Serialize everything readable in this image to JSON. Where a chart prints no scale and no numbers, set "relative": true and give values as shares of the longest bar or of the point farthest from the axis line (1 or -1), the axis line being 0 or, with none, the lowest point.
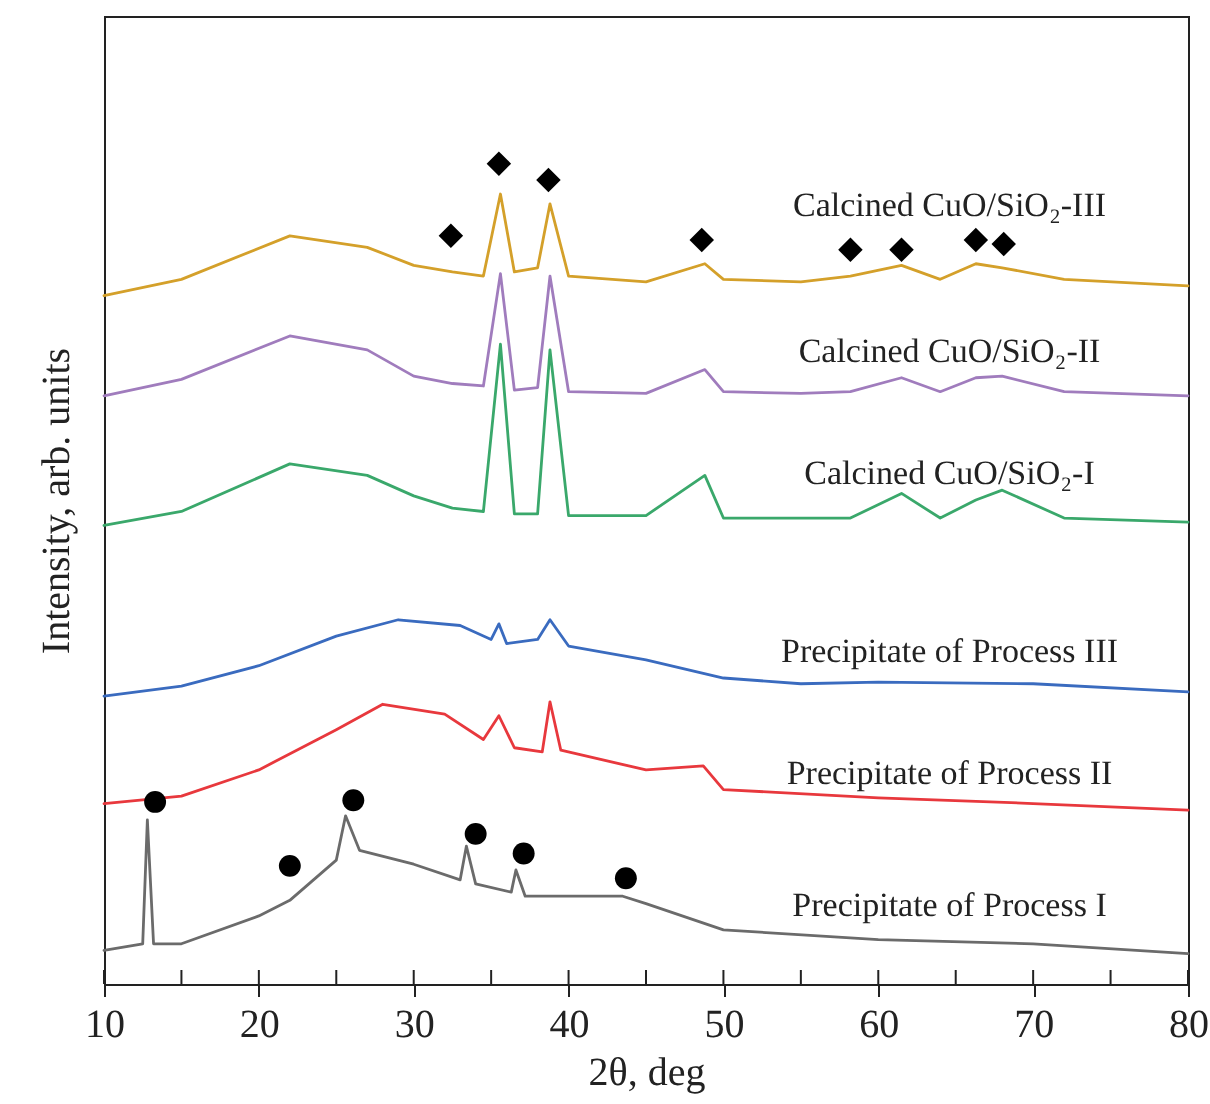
{
  "chart_data": {
    "type": "line",
    "relative": true,
    "xlabel": "2θ, deg",
    "ylabel": "Intensity, arb. units",
    "xlim": [
      10,
      80
    ],
    "xticks": [
      10,
      {
        "value": 15,
        "label": null
      },
      20,
      {
        "value": 25,
        "label": null
      },
      30,
      {
        "value": 35,
        "label": null
      },
      40,
      {
        "value": 45,
        "label": null
      },
      50,
      {
        "value": 55,
        "label": null
      },
      60,
      {
        "value": 65,
        "label": null
      },
      70,
      {
        "value": 75,
        "label": null
      },
      80
    ],
    "grid": false,
    "line_style": "solid",
    "series": [
      {
        "name": "Calcined CuO/SiO₂-III",
        "color": "#d4a02a",
        "x": [
          10,
          15,
          22,
          27,
          30,
          32.5,
          34.5,
          35.6,
          36.5,
          38,
          38.8,
          40,
          45,
          48.8,
          50,
          55,
          58.2,
          61.5,
          64,
          66.3,
          68,
          72,
          80
        ],
        "values": [
          0.839,
          0.859,
          0.912,
          0.898,
          0.876,
          0.868,
          0.863,
          0.963,
          0.868,
          0.873,
          0.951,
          0.863,
          0.856,
          0.878,
          0.859,
          0.856,
          0.863,
          0.876,
          0.859,
          0.878,
          0.873,
          0.859,
          0.851
        ]
      },
      {
        "name": "Calcined CuO/SiO₂-II",
        "color": "#a07cbd",
        "x": [
          10,
          15,
          22,
          27,
          30,
          32.5,
          34.5,
          35.6,
          36.5,
          38,
          38.8,
          40,
          45,
          48.8,
          50,
          55,
          58.2,
          61.5,
          64,
          66.3,
          68,
          72,
          80
        ],
        "values": [
          0.717,
          0.737,
          0.79,
          0.773,
          0.741,
          0.732,
          0.729,
          0.866,
          0.724,
          0.727,
          0.863,
          0.722,
          0.72,
          0.749,
          0.722,
          0.72,
          0.722,
          0.739,
          0.722,
          0.739,
          0.741,
          0.722,
          0.717
        ]
      },
      {
        "name": "Calcined CuO/SiO₂-I",
        "color": "#3aa86b",
        "x": [
          10,
          15,
          22,
          27,
          30,
          32.5,
          34.5,
          35.6,
          36.5,
          38,
          38.8,
          40,
          45,
          48.8,
          50,
          55,
          58.2,
          61.5,
          64,
          66.3,
          68,
          72,
          80
        ],
        "values": [
          0.559,
          0.576,
          0.634,
          0.62,
          0.595,
          0.58,
          0.576,
          0.78,
          0.573,
          0.573,
          0.773,
          0.571,
          0.571,
          0.62,
          0.568,
          0.568,
          0.568,
          0.598,
          0.568,
          0.59,
          0.602,
          0.568,
          0.563
        ]
      },
      {
        "name": "Precipitate of Process III",
        "color": "#3a6bbf",
        "x": [
          10,
          15,
          20,
          25,
          29,
          33,
          35,
          35.5,
          36,
          38,
          38.8,
          40,
          45,
          50,
          55,
          60,
          70,
          80
        ],
        "values": [
          0.351,
          0.363,
          0.388,
          0.424,
          0.444,
          0.437,
          0.42,
          0.439,
          0.415,
          0.42,
          0.444,
          0.412,
          0.395,
          0.373,
          0.366,
          0.368,
          0.366,
          0.356
        ]
      },
      {
        "name": "Precipitate of Process II",
        "color": "#e8383d",
        "x": [
          10,
          15,
          20,
          25,
          28,
          32,
          34.5,
          35.5,
          36.5,
          38.3,
          38.8,
          39.5,
          45,
          48.7,
          50,
          60,
          70,
          80
        ],
        "values": [
          0.22,
          0.229,
          0.261,
          0.31,
          0.341,
          0.329,
          0.298,
          0.327,
          0.288,
          0.283,
          0.344,
          0.285,
          0.261,
          0.266,
          0.237,
          0.227,
          0.22,
          0.212
        ]
      },
      {
        "name": "Precipitate of Process I",
        "color": "#6b6b6b",
        "x": [
          10,
          12.5,
          12.8,
          13.2,
          15,
          20,
          22,
          25,
          25.6,
          26.5,
          30,
          33,
          33.4,
          34,
          36.3,
          36.6,
          37.2,
          40,
          43.5,
          45,
          50,
          60,
          70,
          80
        ],
        "values": [
          0.041,
          0.049,
          0.2,
          0.049,
          0.049,
          0.083,
          0.102,
          0.151,
          0.205,
          0.163,
          0.146,
          0.127,
          0.168,
          0.122,
          0.112,
          0.139,
          0.107,
          0.107,
          0.107,
          0.098,
          0.066,
          0.054,
          0.049,
          0.037
        ]
      },
      {
        "type": "scatter",
        "marker": "diamond",
        "color": "#000000",
        "x": [
          32.4,
          35.5,
          38.7,
          48.6,
          58.2,
          61.5,
          66.3,
          68.1
        ],
        "values": [
          0.912,
          1.0,
          0.98,
          0.907,
          0.895,
          0.895,
          0.907,
          0.902
        ]
      },
      {
        "type": "scatter",
        "marker": "circle",
        "color": "#000000",
        "x": [
          13.3,
          22.0,
          26.1,
          34.0,
          37.1,
          43.7
        ],
        "values": [
          0.222,
          0.144,
          0.224,
          0.183,
          0.159,
          0.129
        ]
      }
    ]
  }
}
